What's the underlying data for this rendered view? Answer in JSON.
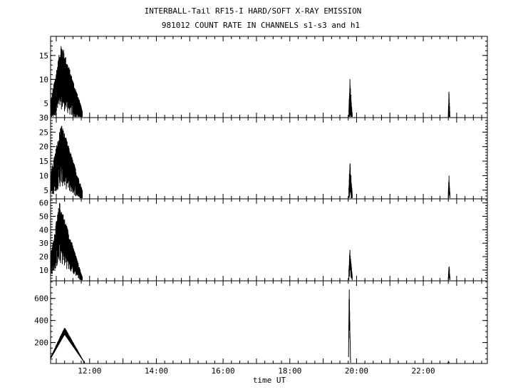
{
  "title_line1": "INTERBALL-Tail RF15-I HARD/SOFT X-RAY EMISSION",
  "title_line2": "981012  COUNT RATE IN CHANNELS s1-s3 and h1",
  "xlabel": "time UT",
  "chart_data": {
    "type": "line",
    "x_axis": {
      "unit": "hours UT",
      "range": [
        10.83,
        23.92
      ],
      "ticks": [
        12,
        14,
        16,
        18,
        20,
        22
      ],
      "tick_labels": [
        "12:00",
        "14:00",
        "16:00",
        "18:00",
        "20:00",
        "22:00"
      ],
      "minor_step_hours": 0.25
    },
    "panels": [
      {
        "channel": "s1",
        "ylim": [
          2,
          19
        ],
        "yticks": [
          5,
          10,
          15
        ],
        "ytick_labels": [
          "5",
          "10",
          "15"
        ],
        "minor_step": 1,
        "bursts": [
          {
            "start": 10.83,
            "peak_time": 11.15,
            "end": 11.78,
            "start_level": 5,
            "peak_level": 17,
            "end_level": 3.5,
            "floor": 0.55,
            "style": "noisy"
          },
          {
            "start": 19.77,
            "peak_time": 19.8,
            "end": 19.87,
            "start_level": 4,
            "peak_level": 10,
            "end_level": 3,
            "floor": 0.55,
            "style": "spike"
          },
          {
            "start": 22.75,
            "peak_time": 22.77,
            "end": 22.8,
            "start_level": 3,
            "peak_level": 8,
            "end_level": 2.5,
            "floor": 0.55,
            "style": "spike"
          }
        ]
      },
      {
        "channel": "s2",
        "ylim": [
          2,
          30
        ],
        "yticks": [
          5,
          10,
          15,
          20,
          25,
          30
        ],
        "ytick_labels": [
          "5",
          "10",
          "15",
          "20",
          "25",
          "30"
        ],
        "minor_step": 1,
        "bursts": [
          {
            "start": 10.83,
            "peak_time": 11.15,
            "end": 11.78,
            "start_level": 10,
            "peak_level": 27,
            "end_level": 5,
            "floor": 0.6,
            "style": "noisy"
          },
          {
            "start": 19.77,
            "peak_time": 19.8,
            "end": 19.87,
            "start_level": 6,
            "peak_level": 15,
            "end_level": 4,
            "floor": 0.6,
            "style": "spike"
          },
          {
            "start": 22.75,
            "peak_time": 22.77,
            "end": 22.8,
            "start_level": 5,
            "peak_level": 10,
            "end_level": 4,
            "floor": 0.6,
            "style": "spike"
          }
        ]
      },
      {
        "channel": "s3",
        "ylim": [
          2,
          63
        ],
        "yticks": [
          10,
          20,
          30,
          40,
          50,
          60
        ],
        "ytick_labels": [
          "10",
          "20",
          "30",
          "40",
          "50",
          "60"
        ],
        "minor_step": 2,
        "bursts": [
          {
            "start": 10.83,
            "peak_time": 11.1,
            "end": 11.78,
            "start_level": 20,
            "peak_level": 58,
            "end_level": 5,
            "floor": 0.65,
            "style": "noisy"
          },
          {
            "start": 19.77,
            "peak_time": 19.8,
            "end": 19.87,
            "start_level": 10,
            "peak_level": 25,
            "end_level": 6,
            "floor": 0.65,
            "style": "spike"
          },
          {
            "start": 22.75,
            "peak_time": 22.77,
            "end": 22.8,
            "start_level": 6,
            "peak_level": 15,
            "end_level": 5,
            "floor": 0.65,
            "style": "spike"
          }
        ]
      },
      {
        "channel": "h1",
        "ylim": [
          10,
          760
        ],
        "yticks": [
          200,
          400,
          600
        ],
        "ytick_labels": [
          "200",
          "400",
          "600"
        ],
        "minor_step": 50,
        "bursts": [
          {
            "start": 10.83,
            "peak_time": 11.25,
            "end": 11.85,
            "start_level": 60,
            "peak_level": 310,
            "end_level": 15,
            "floor": 0.88,
            "style": "smooth"
          },
          {
            "start": 19.76,
            "peak_time": 19.78,
            "end": 19.82,
            "start_level": 80,
            "peak_level": 740,
            "end_level": 20,
            "floor": 0.9,
            "style": "spike"
          },
          {
            "start": 22.74,
            "peak_time": 22.76,
            "end": 22.78,
            "start_level": 20,
            "peak_level": 25,
            "end_level": 20,
            "floor": 0.9,
            "style": "spike"
          }
        ]
      }
    ]
  }
}
